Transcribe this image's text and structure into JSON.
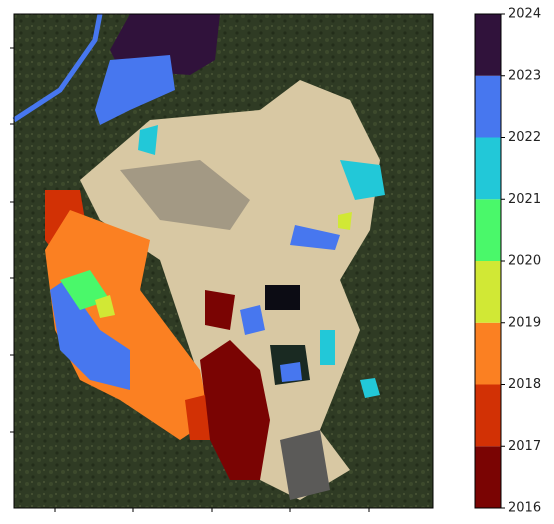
{
  "chart_data": {
    "type": "colorbar",
    "clim": [
      2016,
      2024
    ],
    "ticks": [
      2016,
      2017,
      2018,
      2019,
      2020,
      2021,
      2022,
      2023,
      2024
    ],
    "colors": [
      "#7a0403",
      "#d23105",
      "#fb8022",
      "#d1e835",
      "#4af86a",
      "#22c8d8",
      "#4777ef",
      "#30123b"
    ]
  }
}
